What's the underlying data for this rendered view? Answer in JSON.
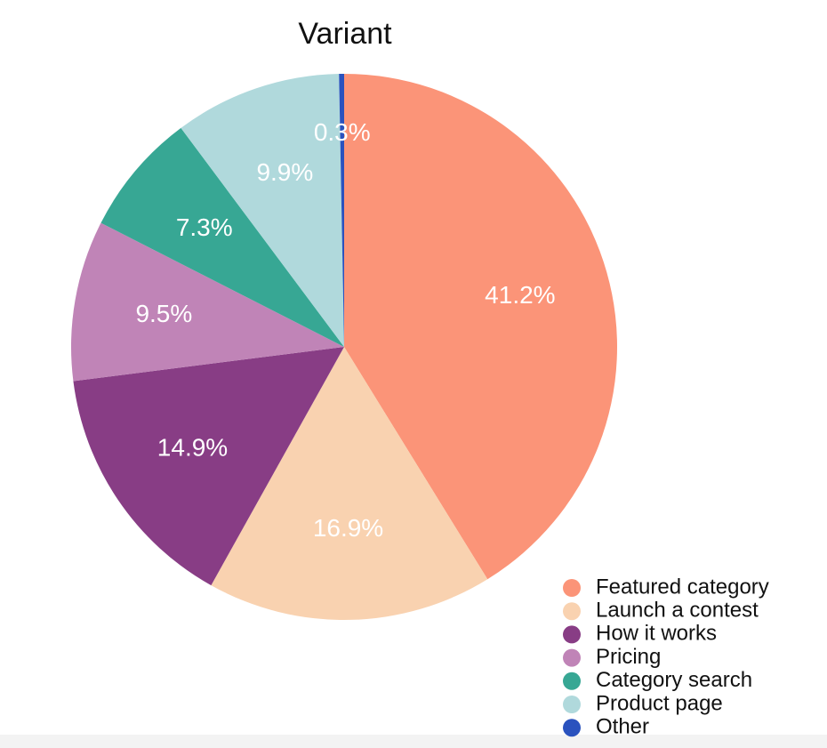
{
  "chart_data": {
    "type": "pie",
    "title": "Variant",
    "categories": [
      "Featured category",
      "Launch a contest",
      "How it works",
      "Pricing",
      "Category search",
      "Product page",
      "Other"
    ],
    "values": [
      41.2,
      16.9,
      14.9,
      9.5,
      7.3,
      9.9,
      0.3
    ],
    "value_labels": [
      "41.2%",
      "16.9%",
      "14.9%",
      "9.5%",
      "7.3%",
      "9.9%",
      "0.3%"
    ],
    "colors": [
      "#fb9478",
      "#f9d2b0",
      "#883d85",
      "#c084b7",
      "#37a794",
      "#b0d9dc",
      "#2a52be"
    ],
    "legend": "bottom-right"
  }
}
